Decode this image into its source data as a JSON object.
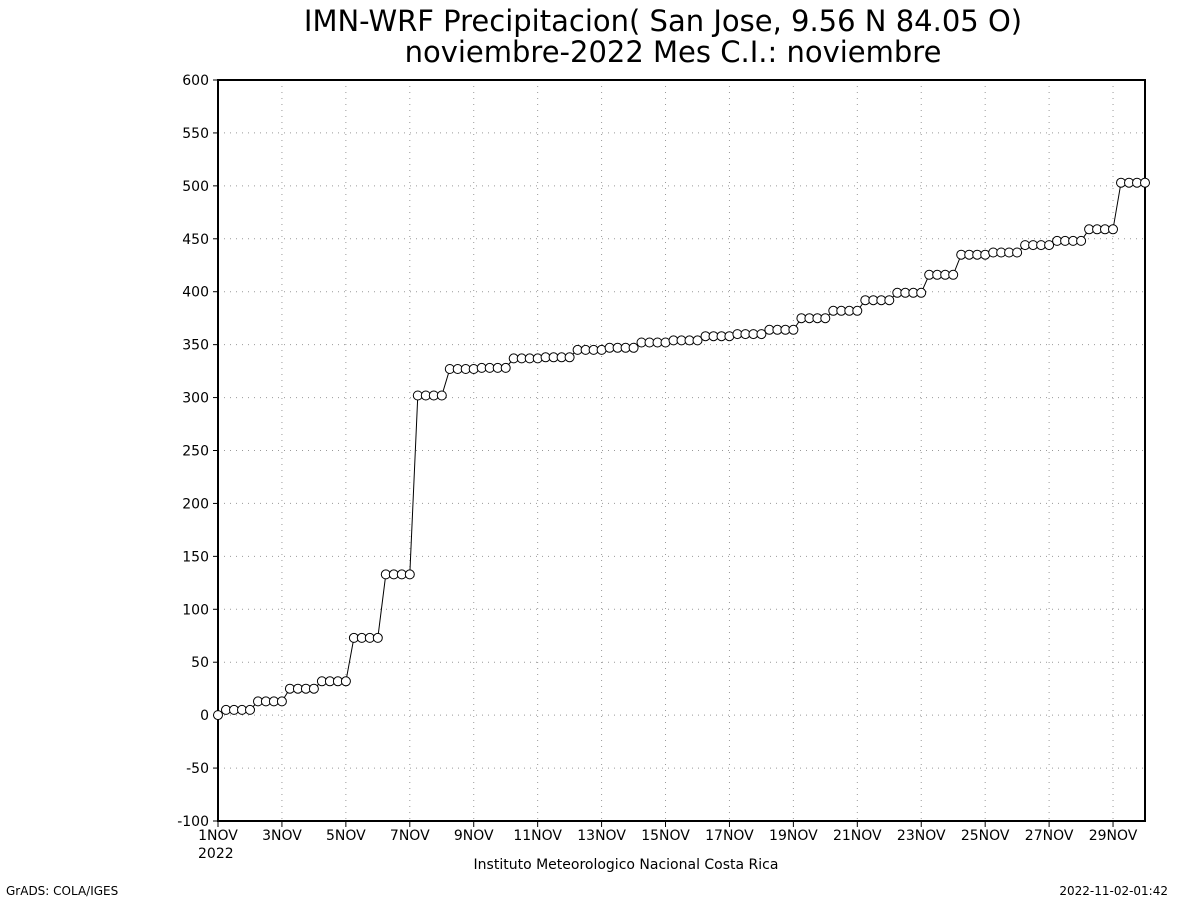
{
  "chart_data": {
    "type": "line",
    "title_line1": "IMN-WRF  Precipitacion( San Jose, 9.56  N 84.05  O)",
    "title_line2": "noviembre-2022 Mes C.I.: noviembre",
    "ylim": [
      -100,
      600
    ],
    "y_ticks": [
      "600",
      "550",
      "500",
      "450",
      "400",
      "350",
      "300",
      "250",
      "200",
      "150",
      "100",
      "50",
      "0",
      "-50",
      "-100"
    ],
    "x_range_days": [
      1,
      30
    ],
    "x_ticks": [
      "1NOV",
      "3NOV",
      "5NOV",
      "7NOV",
      "9NOV",
      "11NOV",
      "13NOV",
      "15NOV",
      "17NOV",
      "19NOV",
      "21NOV",
      "23NOV",
      "25NOV",
      "27NOV",
      "29NOV"
    ],
    "x_year_label": "2022",
    "grid": true,
    "marker": "open-circle",
    "series": [
      {
        "x": [
          "1NOV 00",
          "1NOV 06",
          "1NOV 12",
          "1NOV 18",
          "2NOV 00",
          "2NOV 06",
          "2NOV 12",
          "2NOV 18",
          "3NOV 00",
          "3NOV 06",
          "3NOV 12",
          "3NOV 18",
          "4NOV 00",
          "4NOV 06",
          "4NOV 12",
          "4NOV 18",
          "5NOV 00",
          "5NOV 06",
          "5NOV 12",
          "5NOV 18",
          "6NOV 00",
          "6NOV 06",
          "6NOV 12",
          "6NOV 18",
          "7NOV 00",
          "7NOV 06",
          "7NOV 12",
          "7NOV 18",
          "8NOV 00",
          "8NOV 06",
          "8NOV 12",
          "8NOV 18",
          "9NOV 00",
          "9NOV 06",
          "9NOV 12",
          "9NOV 18",
          "10NOV 00",
          "10NOV 06",
          "10NOV 12",
          "10NOV 18",
          "11NOV 00",
          "11NOV 06",
          "11NOV 12",
          "11NOV 18",
          "12NOV 00",
          "12NOV 06",
          "12NOV 12",
          "12NOV 18",
          "13NOV 00",
          "13NOV 06",
          "13NOV 12",
          "13NOV 18",
          "14NOV 00",
          "14NOV 06",
          "14NOV 12",
          "14NOV 18",
          "15NOV 00",
          "15NOV 06",
          "15NOV 12",
          "15NOV 18",
          "16NOV 00",
          "16NOV 06",
          "16NOV 12",
          "16NOV 18",
          "17NOV 00",
          "17NOV 06",
          "17NOV 12",
          "17NOV 18",
          "18NOV 00",
          "18NOV 06",
          "18NOV 12",
          "18NOV 18",
          "19NOV 00",
          "19NOV 06",
          "19NOV 12",
          "19NOV 18",
          "20NOV 00",
          "20NOV 06",
          "20NOV 12",
          "20NOV 18",
          "21NOV 00",
          "21NOV 06",
          "21NOV 12",
          "21NOV 18",
          "22NOV 00",
          "22NOV 06",
          "22NOV 12",
          "22NOV 18",
          "23NOV 00",
          "23NOV 06",
          "23NOV 12",
          "23NOV 18",
          "24NOV 00",
          "24NOV 06",
          "24NOV 12",
          "24NOV 18",
          "25NOV 00",
          "25NOV 06",
          "25NOV 12",
          "25NOV 18",
          "26NOV 00",
          "26NOV 06",
          "26NOV 12",
          "26NOV 18",
          "27NOV 00",
          "27NOV 06",
          "27NOV 12",
          "27NOV 18",
          "28NOV 00",
          "28NOV 06",
          "28NOV 12",
          "28NOV 18",
          "29NOV 00",
          "29NOV 06",
          "29NOV 12",
          "29NOV 18",
          "30NOV 00"
        ],
        "values": [
          0,
          5,
          5,
          5,
          5,
          13,
          13,
          13,
          13,
          25,
          25,
          25,
          25,
          32,
          32,
          32,
          32,
          73,
          73,
          73,
          73,
          133,
          133,
          133,
          133,
          302,
          302,
          302,
          302,
          327,
          327,
          327,
          327,
          328,
          328,
          328,
          328,
          337,
          337,
          337,
          337,
          338,
          338,
          338,
          338,
          345,
          345,
          345,
          345,
          347,
          347,
          347,
          347,
          352,
          352,
          352,
          352,
          354,
          354,
          354,
          354,
          358,
          358,
          358,
          358,
          360,
          360,
          360,
          360,
          364,
          364,
          364,
          364,
          375,
          375,
          375,
          375,
          382,
          382,
          382,
          382,
          392,
          392,
          392,
          392,
          399,
          399,
          399,
          399,
          416,
          416,
          416,
          416,
          435,
          435,
          435,
          435,
          437,
          437,
          437,
          437,
          444,
          444,
          444,
          444,
          448,
          448,
          448,
          448,
          459,
          459,
          459,
          459,
          503,
          503,
          503,
          503
        ]
      }
    ]
  },
  "footer": {
    "institution": "Instituto Meteorologico Nacional Costa Rica",
    "credit_left": "GrADS: COLA/IGES",
    "credit_right": "2022-11-02-01:42"
  },
  "colors": {
    "line": "#000000",
    "marker_fill": "#ffffff",
    "grid": "#999999",
    "background": "#ffffff"
  }
}
